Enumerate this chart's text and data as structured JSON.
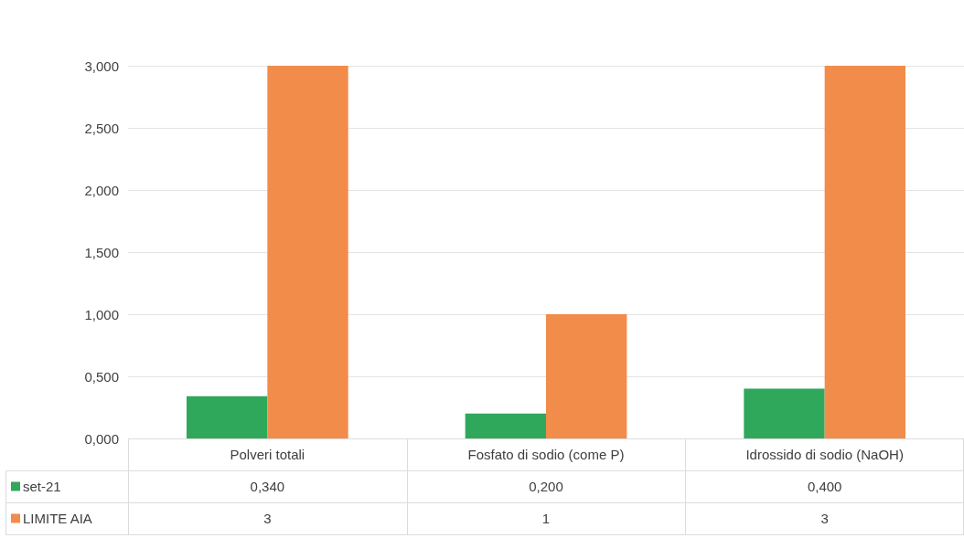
{
  "chart_data": {
    "type": "bar",
    "categories": [
      "Polveri totali",
      "Fosfato di sodio (come P)",
      "Idrossido di sodio (NaOH)"
    ],
    "series": [
      {
        "name": "set-21",
        "color": "#2fa85c",
        "values": [
          0.34,
          0.2,
          0.4
        ],
        "value_labels": [
          "0,340",
          "0,200",
          "0,400"
        ]
      },
      {
        "name": "LIMITE AIA",
        "color": "#f28c4b",
        "values": [
          3,
          1,
          3
        ],
        "value_labels": [
          "3",
          "1",
          "3"
        ]
      }
    ],
    "ylim": [
      0,
      3
    ],
    "yticks": [
      {
        "value": 0,
        "label": "0,000"
      },
      {
        "value": 0.5,
        "label": "0,500"
      },
      {
        "value": 1,
        "label": "1,000"
      },
      {
        "value": 1.5,
        "label": "1,500"
      },
      {
        "value": 2,
        "label": "2,000"
      },
      {
        "value": 2.5,
        "label": "2,500"
      },
      {
        "value": 3,
        "label": "3,000"
      }
    ],
    "grid": "y",
    "legend": "bottom left"
  }
}
